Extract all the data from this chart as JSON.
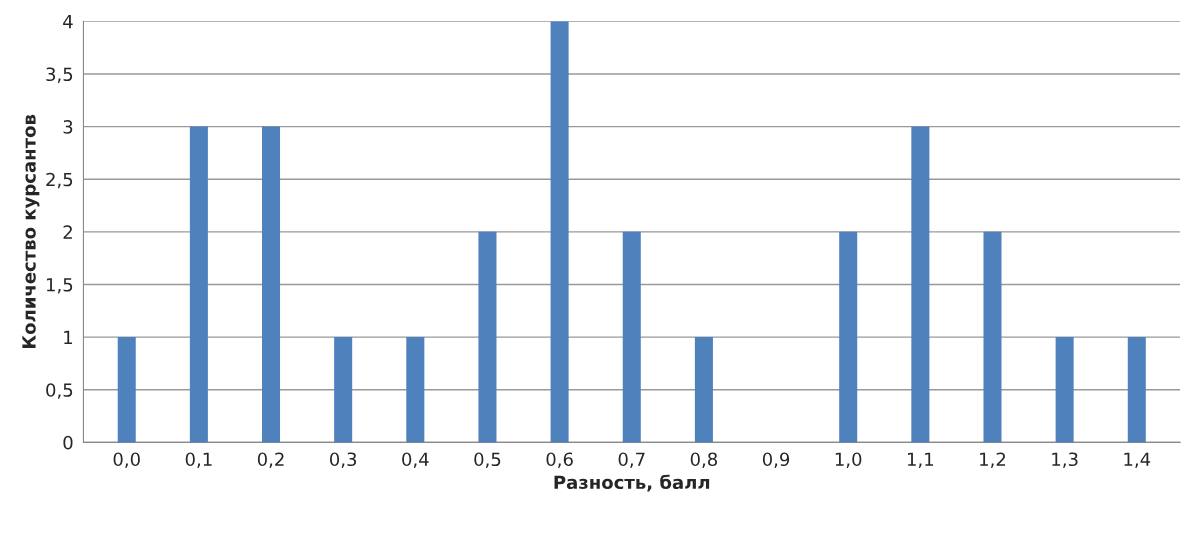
{
  "chart_data": {
    "type": "bar",
    "xlabel": "Разность, балл",
    "ylabel": "Количество курсантов",
    "categories": [
      "0,0",
      "0,1",
      "0,2",
      "0,3",
      "0,4",
      "0,5",
      "0,6",
      "0,7",
      "0,8",
      "0,9",
      "1,0",
      "1,1",
      "1,2",
      "1,3",
      "1,4"
    ],
    "values": [
      1,
      3,
      3,
      1,
      1,
      2,
      4,
      2,
      1,
      0,
      2,
      3,
      2,
      1,
      1
    ],
    "color": "#4f81bd",
    "ylim": [
      0,
      4
    ],
    "yticks": [
      0,
      {
        "value": 0.5,
        "label": "0,5"
      },
      1,
      {
        "value": 1.5,
        "label": "1,5"
      },
      2,
      {
        "value": 2.5,
        "label": "2,5"
      },
      3,
      {
        "value": 3.5,
        "label": "3,5"
      },
      4
    ],
    "grid": "y",
    "legend": false
  }
}
